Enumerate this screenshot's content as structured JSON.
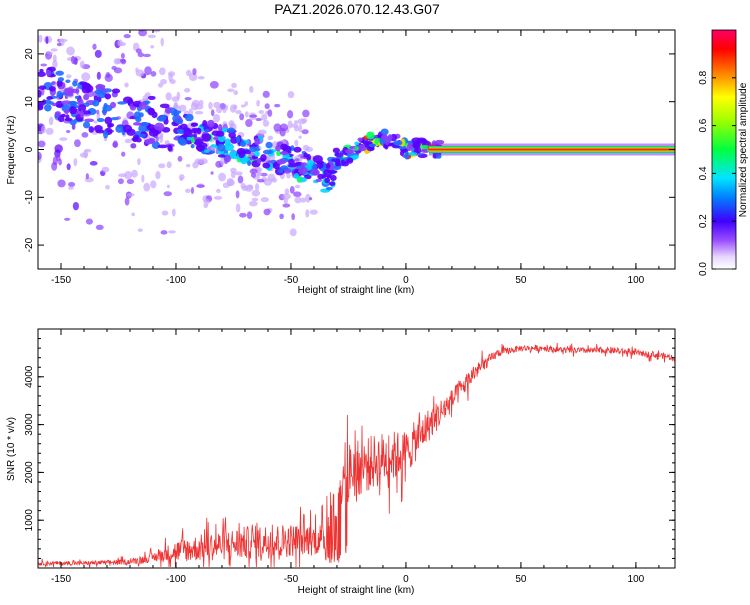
{
  "figure": {
    "title": "PAZ1.2026.070.12.43.G07"
  },
  "chart_data": [
    {
      "type": "heatmap",
      "name": "spectrogram",
      "xlabel": "Height of straight line (km)",
      "ylabel": "Frequency (Hz)",
      "xlim": [
        -160,
        117
      ],
      "ylim": [
        -25,
        25
      ],
      "xticks": [
        -150,
        -100,
        -50,
        0,
        50,
        100
      ],
      "yticks": [
        -20,
        -10,
        0,
        10,
        20
      ],
      "description_points": {
        "note": "Frequency track of dominant signal vs height (center of energy, Hz)",
        "x": [
          -155,
          -140,
          -120,
          -100,
          -90,
          -80,
          -70,
          -60,
          -50,
          -40,
          -35,
          -30,
          -25,
          -20,
          -15,
          -10,
          -5,
          0,
          5,
          10,
          20,
          50,
          100,
          117
        ],
        "y": [
          12,
          9,
          7,
          5,
          3,
          1.5,
          0,
          -1,
          -2.5,
          -4,
          -6,
          -3,
          -1,
          0.5,
          1.5,
          2.5,
          2,
          0,
          0.5,
          0,
          0,
          0,
          0,
          0
        ]
      }
    },
    {
      "type": "colorbar",
      "label": "Normalized spectral amplitude",
      "range": [
        0,
        1
      ],
      "ticks": [
        "0.0",
        "0.2",
        "0.4",
        "0.6",
        "0.8"
      ],
      "tick_values": [
        0.0,
        0.2,
        0.4,
        0.6,
        0.8
      ]
    },
    {
      "type": "line",
      "name": "snr",
      "xlabel": "Height of straight line (km)",
      "ylabel": "SNR (10 * v/v)",
      "xlim": [
        -160,
        117
      ],
      "ylim": [
        0,
        5000
      ],
      "xticks": [
        -150,
        -100,
        -50,
        0,
        50,
        100
      ],
      "yticks": [
        1000,
        2000,
        3000,
        4000
      ],
      "series": [
        {
          "name": "SNR",
          "color": "#ee3333",
          "envelope": {
            "x": [
              -160,
              -140,
              -120,
              -110,
              -100,
              -90,
              -80,
              -70,
              -60,
              -50,
              -40,
              -35,
              -30,
              -25,
              -20,
              -10,
              0,
              10,
              20,
              30,
              40,
              50,
              60,
              70,
              80,
              90,
              100,
              110,
              117
            ],
            "y": [
              100,
              100,
              130,
              220,
              350,
              420,
              480,
              520,
              560,
              580,
              600,
              620,
              1400,
              2000,
              2100,
              2300,
              2400,
              3000,
              3500,
              4100,
              4500,
              4600,
              4600,
              4550,
              4550,
              4550,
              4500,
              4450,
              4400
            ]
          },
          "noise": [
            60,
            60,
            80,
            140,
            330,
            400,
            450,
            500,
            520,
            500,
            480,
            460,
            900,
            900,
            850,
            800,
            700,
            500,
            350,
            250,
            120,
            90,
            90,
            90,
            90,
            90,
            90,
            90,
            90
          ]
        }
      ]
    }
  ]
}
